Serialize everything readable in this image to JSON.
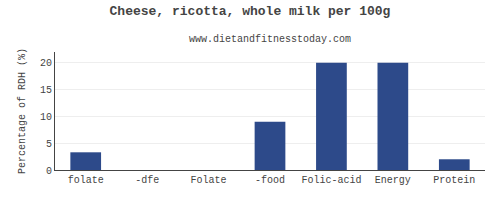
{
  "chart_data": {
    "type": "bar",
    "title": "Cheese, ricotta, whole milk per 100g",
    "subtitle": "www.dietandfitnesstoday.com",
    "categories": [
      "folate",
      "-dfe",
      "Folate",
      "-food",
      "Folic-acid",
      "Energy",
      "Protein"
    ],
    "values": [
      3.3,
      0.0,
      0.0,
      9.0,
      20.0,
      20.0,
      2.0
    ],
    "color": "#2d4a8a",
    "ylabel": "Percentage of RDH (%)",
    "ylim": [
      0,
      22
    ],
    "yticks": [
      0,
      5,
      10,
      15,
      20
    ],
    "grid": true
  }
}
